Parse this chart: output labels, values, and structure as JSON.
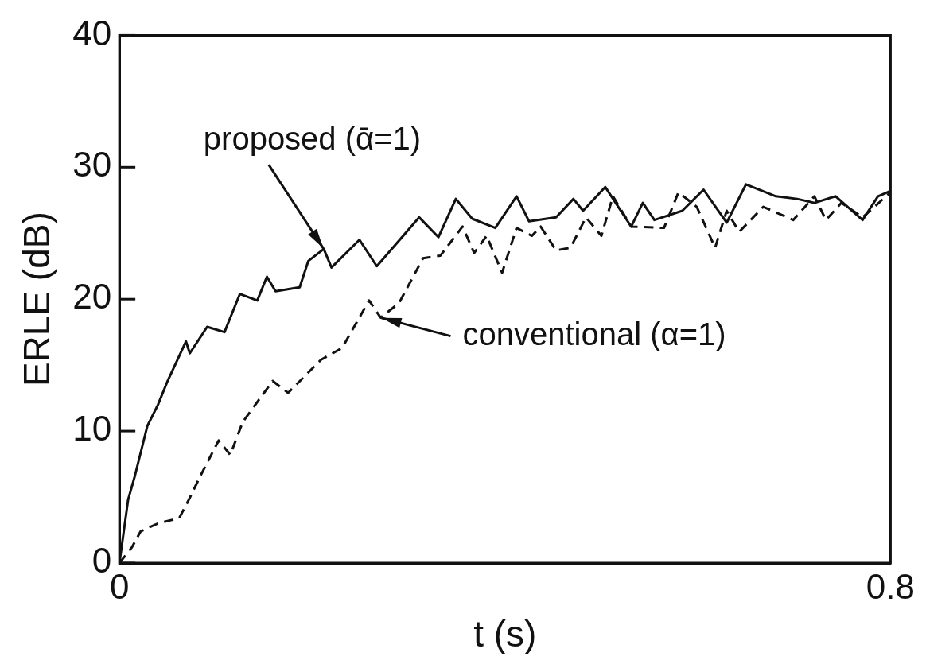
{
  "chart_data": {
    "type": "line",
    "xlabel": "t (s)",
    "ylabel": "ERLE (dB)",
    "xlim": [
      0,
      0.8
    ],
    "xticks": [
      0,
      0.8
    ],
    "ylim": [
      0,
      40
    ],
    "yticks": [
      0,
      10,
      20,
      30,
      40
    ],
    "grid": false,
    "legend": false,
    "marker": "none",
    "annotations": [
      {
        "text": "proposed (ᾱ=1)",
        "x": 0.212,
        "y": 23.8
      },
      {
        "text": "conventional (α=1)",
        "x": 0.271,
        "y": 18.6
      }
    ],
    "series": [
      {
        "color": "#111111",
        "line_style": "solid",
        "x": [
          0,
          0.009,
          0.016,
          0.029,
          0.04,
          0.05,
          0.069,
          0.073,
          0.091,
          0.109,
          0.125,
          0.143,
          0.153,
          0.162,
          0.187,
          0.196,
          0.212,
          0.22,
          0.249,
          0.267,
          0.311,
          0.331,
          0.349,
          0.366,
          0.39,
          0.412,
          0.425,
          0.453,
          0.471,
          0.481,
          0.504,
          0.531,
          0.543,
          0.555,
          0.584,
          0.606,
          0.63,
          0.65,
          0.681,
          0.703,
          0.721,
          0.743,
          0.771,
          0.787,
          0.8
        ],
        "values": [
          0,
          4.8,
          6.6,
          10.4,
          12,
          13.8,
          16.8,
          15.9,
          17.9,
          17.5,
          20.4,
          19.9,
          21.7,
          20.6,
          20.9,
          22.9,
          23.8,
          22.4,
          24.5,
          22.5,
          26.2,
          24.7,
          27.6,
          26.1,
          25.4,
          27.8,
          25.9,
          26.2,
          27.6,
          26.7,
          28.5,
          25.5,
          27.3,
          26,
          26.7,
          28.3,
          25.8,
          28.7,
          27.8,
          27.6,
          27.3,
          27.8,
          26,
          27.8,
          28.2
        ]
      },
      {
        "color": "#111111",
        "line_style": "dashed",
        "x": [
          0,
          0.013,
          0.022,
          0.04,
          0.062,
          0.072,
          0.084,
          0.103,
          0.115,
          0.128,
          0.159,
          0.175,
          0.209,
          0.231,
          0.259,
          0.271,
          0.29,
          0.315,
          0.333,
          0.356,
          0.368,
          0.381,
          0.397,
          0.412,
          0.428,
          0.437,
          0.453,
          0.468,
          0.484,
          0.5,
          0.512,
          0.531,
          0.565,
          0.58,
          0.599,
          0.618,
          0.63,
          0.643,
          0.668,
          0.699,
          0.721,
          0.733,
          0.749,
          0.771,
          0.8
        ],
        "values": [
          0,
          1.2,
          2.4,
          3,
          3.4,
          4.8,
          6.6,
          9.3,
          8.2,
          10.7,
          13.8,
          12.9,
          15.4,
          16.3,
          19.9,
          18.6,
          19.7,
          23.1,
          23.3,
          25.5,
          23.5,
          24.8,
          22,
          25.4,
          24.8,
          25.5,
          23.7,
          23.9,
          26.2,
          24.8,
          27.8,
          25.5,
          25.4,
          28.1,
          27,
          23.9,
          26.7,
          25.1,
          27,
          26,
          27.8,
          26,
          27.3,
          26.2,
          28.1
        ]
      }
    ]
  }
}
